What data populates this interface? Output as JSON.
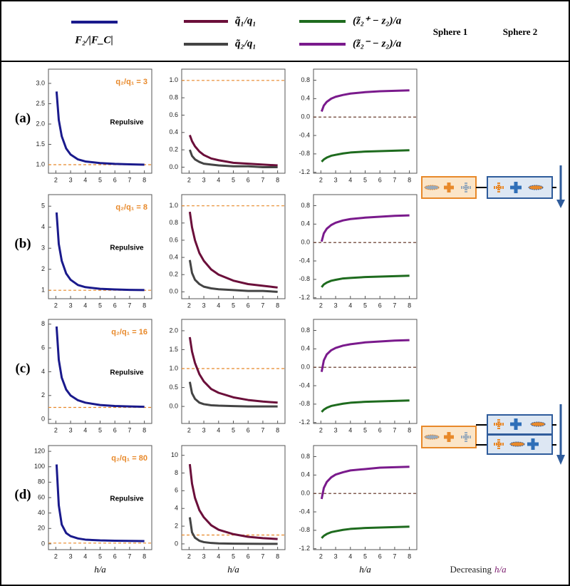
{
  "diagram": {
    "sphere1": "Sphere 1",
    "sphere2": "Sphere 2",
    "decreasing": "Decreasing",
    "decreasing_var": "h/a"
  },
  "chart_data": [
    {
      "type": "line",
      "row_label": "(a)",
      "ratio_label": "q₂/q₁ = 3",
      "regime": "Repulsive",
      "x": [
        2.05,
        2.2,
        2.4,
        2.7,
        3,
        3.5,
        4,
        5,
        6,
        7,
        8
      ],
      "xlim": [
        1.5,
        8.5
      ],
      "xticks": [
        2,
        3,
        4,
        5,
        6,
        7,
        8
      ],
      "ylim": [
        0.79,
        3.35
      ],
      "yticks": [
        {
          "value": 1,
          "label": "1.0"
        },
        1.5,
        {
          "value": 2,
          "label": "2.0"
        },
        2.5,
        {
          "value": 3,
          "label": "3.0"
        }
      ],
      "hline": 1,
      "hline_color": "#e8892a",
      "series": [
        {
          "name": "F₂/|F_C|",
          "color": "#1a1a8c",
          "values": [
            2.8,
            2.1,
            1.7,
            1.4,
            1.25,
            1.13,
            1.08,
            1.04,
            1.02,
            1.01,
            1.0
          ]
        }
      ]
    },
    {
      "type": "line",
      "x": [
        2.05,
        2.2,
        2.4,
        2.7,
        3,
        3.5,
        4,
        5,
        6,
        7,
        8
      ],
      "xlim": [
        1.5,
        8.5
      ],
      "xticks": [
        2,
        3,
        4,
        5,
        6,
        7,
        8
      ],
      "ylim": [
        -0.07,
        1.13
      ],
      "yticks": [
        {
          "value": 0,
          "label": "0.0"
        },
        0.2,
        0.4,
        0.6,
        0.8,
        {
          "value": 1,
          "label": "1.0"
        }
      ],
      "hline": 1,
      "hline_color": "#e8892a",
      "series": [
        {
          "name": "q̃₁/q₁",
          "color": "#6b0f3a",
          "values": [
            0.37,
            0.3,
            0.24,
            0.18,
            0.14,
            0.1,
            0.08,
            0.05,
            0.04,
            0.03,
            0.02
          ]
        },
        {
          "name": "q̃₂/q₁",
          "color": "#444444",
          "values": [
            0.2,
            0.13,
            0.09,
            0.06,
            0.04,
            0.03,
            0.02,
            0.01,
            0.01,
            0.0,
            0.0
          ]
        }
      ]
    },
    {
      "type": "line",
      "x": [
        2.05,
        2.2,
        2.4,
        2.7,
        3,
        3.5,
        4,
        5,
        6,
        7,
        8
      ],
      "xlim": [
        1.5,
        8.5
      ],
      "xticks": [
        2,
        3,
        4,
        5,
        6,
        7,
        8
      ],
      "ylim": [
        -1.22,
        1.04
      ],
      "yticks": [
        -1.2,
        -0.8,
        -0.4,
        {
          "value": 0,
          "label": "0.0"
        },
        0.4,
        0.8
      ],
      "hline": 0,
      "hline_color": "#5a2a1a",
      "series": [
        {
          "name": "(z̃₂⁺ − z₂)/a",
          "color": "#1e6b1e",
          "values": [
            -0.97,
            -0.92,
            -0.88,
            -0.84,
            -0.82,
            -0.79,
            -0.77,
            -0.75,
            -0.74,
            -0.73,
            -0.72
          ]
        },
        {
          "name": "(z̃₂⁻ − z₂)/a",
          "color": "#7a1a8c",
          "values": [
            0.12,
            0.25,
            0.33,
            0.4,
            0.44,
            0.48,
            0.51,
            0.54,
            0.56,
            0.57,
            0.58
          ]
        }
      ]
    },
    {
      "type": "line",
      "row_label": "(b)",
      "ratio_label": "q₂/q₁ = 8",
      "regime": "Repulsive",
      "x": [
        2.05,
        2.2,
        2.4,
        2.7,
        3,
        3.5,
        4,
        5,
        6,
        7,
        8
      ],
      "xlim": [
        1.5,
        8.5
      ],
      "xticks": [
        2,
        3,
        4,
        5,
        6,
        7,
        8
      ],
      "ylim": [
        0.6,
        5.55
      ],
      "yticks": [
        1,
        2,
        3,
        4,
        5
      ],
      "hline": 1,
      "hline_color": "#e8892a",
      "series": [
        {
          "name": "F₂/|F_C|",
          "color": "#1a1a8c",
          "values": [
            4.7,
            3.2,
            2.4,
            1.8,
            1.5,
            1.25,
            1.15,
            1.07,
            1.04,
            1.02,
            1.01
          ]
        }
      ]
    },
    {
      "type": "line",
      "x": [
        2.05,
        2.2,
        2.4,
        2.7,
        3,
        3.5,
        4,
        5,
        6,
        7,
        8
      ],
      "xlim": [
        1.5,
        8.5
      ],
      "xticks": [
        2,
        3,
        4,
        5,
        6,
        7,
        8
      ],
      "ylim": [
        -0.08,
        1.13
      ],
      "yticks": [
        {
          "value": 0,
          "label": "0.0"
        },
        0.2,
        0.4,
        0.6,
        0.8,
        {
          "value": 1,
          "label": "1.0"
        }
      ],
      "hline": 1,
      "hline_color": "#e8892a",
      "series": [
        {
          "name": "q̃₁/q₁",
          "color": "#6b0f3a",
          "values": [
            0.93,
            0.75,
            0.6,
            0.45,
            0.36,
            0.26,
            0.2,
            0.13,
            0.09,
            0.07,
            0.05
          ]
        },
        {
          "name": "q̃₂/q₁",
          "color": "#444444",
          "values": [
            0.37,
            0.22,
            0.14,
            0.09,
            0.06,
            0.04,
            0.03,
            0.02,
            0.01,
            0.01,
            0.0
          ]
        }
      ]
    },
    {
      "type": "line",
      "x": [
        2.05,
        2.2,
        2.4,
        2.7,
        3,
        3.5,
        4,
        5,
        6,
        7,
        8
      ],
      "xlim": [
        1.5,
        8.5
      ],
      "xticks": [
        2,
        3,
        4,
        5,
        6,
        7,
        8
      ],
      "ylim": [
        -1.22,
        1.04
      ],
      "yticks": [
        -1.2,
        -0.8,
        -0.4,
        {
          "value": 0,
          "label": "0.0"
        },
        0.4,
        0.8
      ],
      "hline": 0,
      "hline_color": "#5a2a1a",
      "series": [
        {
          "name": "(z̃₂⁺ − z₂)/a",
          "color": "#1e6b1e",
          "values": [
            -0.97,
            -0.91,
            -0.87,
            -0.83,
            -0.81,
            -0.78,
            -0.77,
            -0.75,
            -0.74,
            -0.73,
            -0.72
          ]
        },
        {
          "name": "(z̃₂⁻ − z₂)/a",
          "color": "#7a1a8c",
          "values": [
            0.02,
            0.2,
            0.3,
            0.38,
            0.43,
            0.48,
            0.51,
            0.54,
            0.56,
            0.58,
            0.59
          ]
        }
      ]
    },
    {
      "type": "line",
      "row_label": "(c)",
      "ratio_label": "q₂/q₁ = 16",
      "regime": "Repulsive",
      "x": [
        2.05,
        2.2,
        2.4,
        2.7,
        3,
        3.5,
        4,
        5,
        6,
        7,
        8
      ],
      "xlim": [
        1.5,
        8.5
      ],
      "xticks": [
        2,
        3,
        4,
        5,
        6,
        7,
        8
      ],
      "ylim": [
        -0.35,
        8.4
      ],
      "yticks": [
        0,
        2,
        4,
        6,
        8
      ],
      "hline": 1,
      "hline_color": "#e8892a",
      "series": [
        {
          "name": "F₂/|F_C|",
          "color": "#1a1a8c",
          "values": [
            7.8,
            5,
            3.5,
            2.5,
            2,
            1.6,
            1.4,
            1.2,
            1.12,
            1.08,
            1.05
          ]
        }
      ]
    },
    {
      "type": "line",
      "x": [
        2.05,
        2.2,
        2.4,
        2.7,
        3,
        3.5,
        4,
        5,
        6,
        7,
        8
      ],
      "xlim": [
        1.5,
        8.5
      ],
      "xticks": [
        2,
        3,
        4,
        5,
        6,
        7,
        8
      ],
      "ylim": [
        -0.45,
        2.3
      ],
      "yticks": [
        {
          "value": 0,
          "label": "0.0"
        },
        0.5,
        {
          "value": 1,
          "label": "1.0"
        },
        1.5,
        {
          "value": 2,
          "label": "2.0"
        }
      ],
      "hline": 1,
      "hline_color": "#e8892a",
      "series": [
        {
          "name": "q̃₁/q₁",
          "color": "#6b0f3a",
          "values": [
            1.83,
            1.45,
            1.15,
            0.85,
            0.66,
            0.46,
            0.36,
            0.24,
            0.17,
            0.13,
            0.1
          ]
        },
        {
          "name": "q̃₂/q₁",
          "color": "#444444",
          "values": [
            0.65,
            0.35,
            0.2,
            0.1,
            0.06,
            0.03,
            0.02,
            0.01,
            0.0,
            0.0,
            0.0
          ]
        }
      ]
    },
    {
      "type": "line",
      "x": [
        2.05,
        2.2,
        2.4,
        2.7,
        3,
        3.5,
        4,
        5,
        6,
        7,
        8
      ],
      "xlim": [
        1.5,
        8.5
      ],
      "xticks": [
        2,
        3,
        4,
        5,
        6,
        7,
        8
      ],
      "ylim": [
        -1.22,
        1.04
      ],
      "yticks": [
        -1.2,
        -0.8,
        -0.4,
        {
          "value": 0,
          "label": "0.0"
        },
        0.4,
        0.8
      ],
      "hline": 0,
      "hline_color": "#5a2a1a",
      "series": [
        {
          "name": "(z̃₂⁺ − z₂)/a",
          "color": "#1e6b1e",
          "values": [
            -0.97,
            -0.92,
            -0.88,
            -0.84,
            -0.82,
            -0.79,
            -0.77,
            -0.75,
            -0.74,
            -0.73,
            -0.72
          ]
        },
        {
          "name": "(z̃₂⁻ − z₂)/a",
          "color": "#7a1a8c",
          "values": [
            -0.1,
            0.15,
            0.28,
            0.37,
            0.42,
            0.47,
            0.5,
            0.54,
            0.56,
            0.58,
            0.59
          ]
        }
      ]
    },
    {
      "type": "line",
      "row_label": "(d)",
      "ratio_label": "q₂/q₁ = 80",
      "regime": "Repulsive",
      "x_label": "h/a",
      "x": [
        2.05,
        2.2,
        2.4,
        2.7,
        3,
        3.5,
        4,
        5,
        6,
        7,
        8
      ],
      "xlim": [
        1.5,
        8.5
      ],
      "xticks": [
        2,
        3,
        4,
        5,
        6,
        7,
        8
      ],
      "ylim": [
        -7.5,
        127.5
      ],
      "yticks": [
        0,
        20,
        40,
        60,
        80,
        100,
        120
      ],
      "hline": 1,
      "hline_color": "#e8892a",
      "series": [
        {
          "name": "F₂/|F_C|",
          "color": "#1a1a8c",
          "values": [
            103,
            50,
            25,
            14,
            10,
            7,
            5.5,
            4.5,
            4,
            3.8,
            3.6
          ]
        }
      ]
    },
    {
      "type": "line",
      "x_label": "h/a",
      "x": [
        2.05,
        2.2,
        2.4,
        2.7,
        3,
        3.5,
        4,
        5,
        6,
        7,
        8
      ],
      "xlim": [
        1.5,
        8.5
      ],
      "xticks": [
        2,
        3,
        4,
        5,
        6,
        7,
        8
      ],
      "ylim": [
        -0.65,
        11.1
      ],
      "yticks": [
        0,
        2,
        4,
        6,
        8,
        10
      ],
      "hline": 1,
      "hline_color": "#e8892a",
      "series": [
        {
          "name": "q̃₁/q₁",
          "color": "#6b0f3a",
          "values": [
            9,
            6.8,
            5.2,
            3.8,
            3,
            2.1,
            1.6,
            1.1,
            0.8,
            0.65,
            0.55
          ]
        },
        {
          "name": "q̃₂/q₁",
          "color": "#444444",
          "values": [
            3,
            1.3,
            0.7,
            0.35,
            0.2,
            0.1,
            0.05,
            0.02,
            0.01,
            0.0,
            0.0
          ]
        }
      ]
    },
    {
      "type": "line",
      "x_label": "h/a",
      "x": [
        2.05,
        2.2,
        2.4,
        2.7,
        3,
        3.5,
        4,
        5,
        6,
        7,
        8
      ],
      "xlim": [
        1.5,
        8.5
      ],
      "xticks": [
        2,
        3,
        4,
        5,
        6,
        7,
        8
      ],
      "ylim": [
        -1.22,
        1.04
      ],
      "yticks": [
        -1.2,
        -0.8,
        -0.4,
        {
          "value": 0,
          "label": "0.0"
        },
        0.4,
        0.8
      ],
      "hline": 0,
      "hline_color": "#5a2a1a",
      "series": [
        {
          "name": "(z̃₂⁺ − z₂)/a",
          "color": "#1e6b1e",
          "values": [
            -0.97,
            -0.92,
            -0.88,
            -0.84,
            -0.82,
            -0.79,
            -0.77,
            -0.75,
            -0.74,
            -0.73,
            -0.72
          ]
        },
        {
          "name": "(z̃₂⁻ − z₂)/a",
          "color": "#7a1a8c",
          "values": [
            -0.12,
            0.12,
            0.25,
            0.35,
            0.41,
            0.46,
            0.5,
            0.53,
            0.56,
            0.57,
            0.58
          ]
        }
      ]
    }
  ]
}
